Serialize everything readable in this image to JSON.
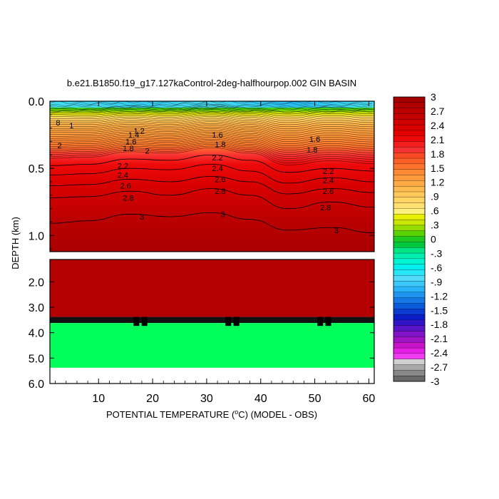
{
  "chart_data": {
    "type": "heatmap",
    "title": "b.e21.B1850.f19_g17.127kaControl-2deg-halfhourpop.002 GIN BASIN",
    "xlabel": "POTENTIAL TEMPERATURE (",
    "xlabel_unit_sup": "o",
    "xlabel_tail": "C) (MODEL - OBS)",
    "ylabel": "DEPTH (km)",
    "x_ticks": [
      10,
      20,
      30,
      40,
      50,
      60
    ],
    "x_range": [
      1,
      61
    ],
    "upper_panel": {
      "y_range": [
        0.0,
        1.12
      ],
      "y_ticks": [
        "0.0",
        "0.5",
        "1.0"
      ],
      "y_tick_values": [
        0.0,
        0.5,
        1.0
      ]
    },
    "lower_panel": {
      "y_range": [
        1.12,
        6.0
      ],
      "y_ticks": [
        "2.0",
        "3.0",
        "4.0",
        "5.0",
        "6.0"
      ],
      "y_tick_values": [
        2.0,
        3.0,
        4.0,
        5.0,
        6.0
      ]
    },
    "contour_lines": [
      {
        "level": 2.2,
        "label": "2.2",
        "depth": [
          0.48,
          0.47,
          0.43,
          0.44,
          0.4,
          0.44,
          0.53,
          0.5,
          0.52
        ]
      },
      {
        "level": 2.4,
        "label": "2.4",
        "depth": [
          0.55,
          0.54,
          0.5,
          0.51,
          0.47,
          0.52,
          0.61,
          0.57,
          0.6
        ]
      },
      {
        "level": 2.6,
        "label": "2.6",
        "depth": [
          0.63,
          0.62,
          0.58,
          0.6,
          0.56,
          0.6,
          0.69,
          0.65,
          0.68
        ]
      },
      {
        "level": 2.8,
        "label": "2.8",
        "depth": [
          0.72,
          0.71,
          0.67,
          0.7,
          0.65,
          0.7,
          0.8,
          0.75,
          0.79
        ]
      },
      {
        "level": 3.0,
        "label": "3",
        "depth": [
          0.91,
          0.89,
          0.84,
          0.86,
          0.83,
          0.88,
          0.96,
          0.94,
          0.98
        ]
      }
    ],
    "contour_labels": [
      {
        "text": "8",
        "x": 2.5,
        "depth": 0.16
      },
      {
        "text": "1",
        "x": 5.0,
        "depth": 0.18
      },
      {
        "text": "2",
        "x": 2.8,
        "depth": 0.33
      },
      {
        "text": "1.8",
        "x": 15.5,
        "depth": 0.35
      },
      {
        "text": "1.6",
        "x": 16.0,
        "depth": 0.3
      },
      {
        "text": "1.4",
        "x": 16.5,
        "depth": 0.25
      },
      {
        "text": "1.2",
        "x": 17.5,
        "depth": 0.22
      },
      {
        "text": "2",
        "x": 19.0,
        "depth": 0.37
      },
      {
        "text": "2.2",
        "x": 14.5,
        "depth": 0.48
      },
      {
        "text": "2.4",
        "x": 14.5,
        "depth": 0.55
      },
      {
        "text": "2.6",
        "x": 15.0,
        "depth": 0.63
      },
      {
        "text": "2.8",
        "x": 15.5,
        "depth": 0.72
      },
      {
        "text": "3",
        "x": 18.0,
        "depth": 0.86
      },
      {
        "text": "1.6",
        "x": 32.0,
        "depth": 0.25
      },
      {
        "text": "1.8",
        "x": 32.5,
        "depth": 0.32
      },
      {
        "text": "2.2",
        "x": 32.0,
        "depth": 0.42
      },
      {
        "text": "2.4",
        "x": 32.0,
        "depth": 0.5
      },
      {
        "text": "2.6",
        "x": 32.5,
        "depth": 0.58
      },
      {
        "text": "2.8",
        "x": 32.5,
        "depth": 0.67
      },
      {
        "text": "3",
        "x": 33.0,
        "depth": 0.84
      },
      {
        "text": "1.6",
        "x": 50.0,
        "depth": 0.28
      },
      {
        "text": "1.8",
        "x": 49.5,
        "depth": 0.36
      },
      {
        "text": "2.2",
        "x": 52.5,
        "depth": 0.52
      },
      {
        "text": "2.4",
        "x": 52.5,
        "depth": 0.59
      },
      {
        "text": "2.6",
        "x": 52.5,
        "depth": 0.67
      },
      {
        "text": "2.8",
        "x": 52.0,
        "depth": 0.79
      },
      {
        "text": "3",
        "x": 54.0,
        "depth": 0.96
      }
    ],
    "lower_bands": [
      {
        "from": 1.12,
        "to": 3.38,
        "value": 3.0,
        "color": "#b40000"
      },
      {
        "from": 3.38,
        "to": 3.62,
        "value": null,
        "color": "#111111"
      },
      {
        "from": 3.62,
        "to": 5.38,
        "value": 0.15,
        "color": "#00ff5a"
      },
      {
        "from": 5.38,
        "to": 6.0,
        "value": null,
        "color": "#ffffff"
      }
    ],
    "colorbar": {
      "labels": [
        "3",
        "2.7",
        "2.4",
        "2.1",
        "1.8",
        "1.5",
        "1.2",
        ".9",
        ".6",
        ".3",
        "0",
        "-.3",
        "-.6",
        "-.9",
        "-1.2",
        "-1.5",
        "-1.8",
        "-2.1",
        "-2.4",
        "-2.7",
        "-3"
      ],
      "colors": [
        "#a50000",
        "#b00000",
        "#bb0000",
        "#c50000",
        "#d00000",
        "#da0000",
        "#e50000",
        "#ee0a0a",
        "#f51e1e",
        "#f83232",
        "#fa4a23",
        "#fc6026",
        "#fd752c",
        "#fe8a34",
        "#ff9a3c",
        "#ffaa44",
        "#ffba50",
        "#ffc85a",
        "#ffd566",
        "#ffe070",
        "#fff080",
        "#e8f000",
        "#c8e600",
        "#96dc00",
        "#5ad200",
        "#1ec81e",
        "#00c83c",
        "#00e682",
        "#00f0b4",
        "#00f5d2",
        "#00f0f0",
        "#28e6f5",
        "#50dcfa",
        "#3cc8fa",
        "#28b4fa",
        "#1e96f0",
        "#1478e6",
        "#0a5adc",
        "#0a3cd2",
        "#0a1ec8",
        "#3214c8",
        "#5a14c8",
        "#8214c8",
        "#a014c8",
        "#c814c8",
        "#e61ee6",
        "#f03cf0",
        "#d0d0d0",
        "#a8a8a8",
        "#888888",
        "#686868"
      ]
    }
  }
}
